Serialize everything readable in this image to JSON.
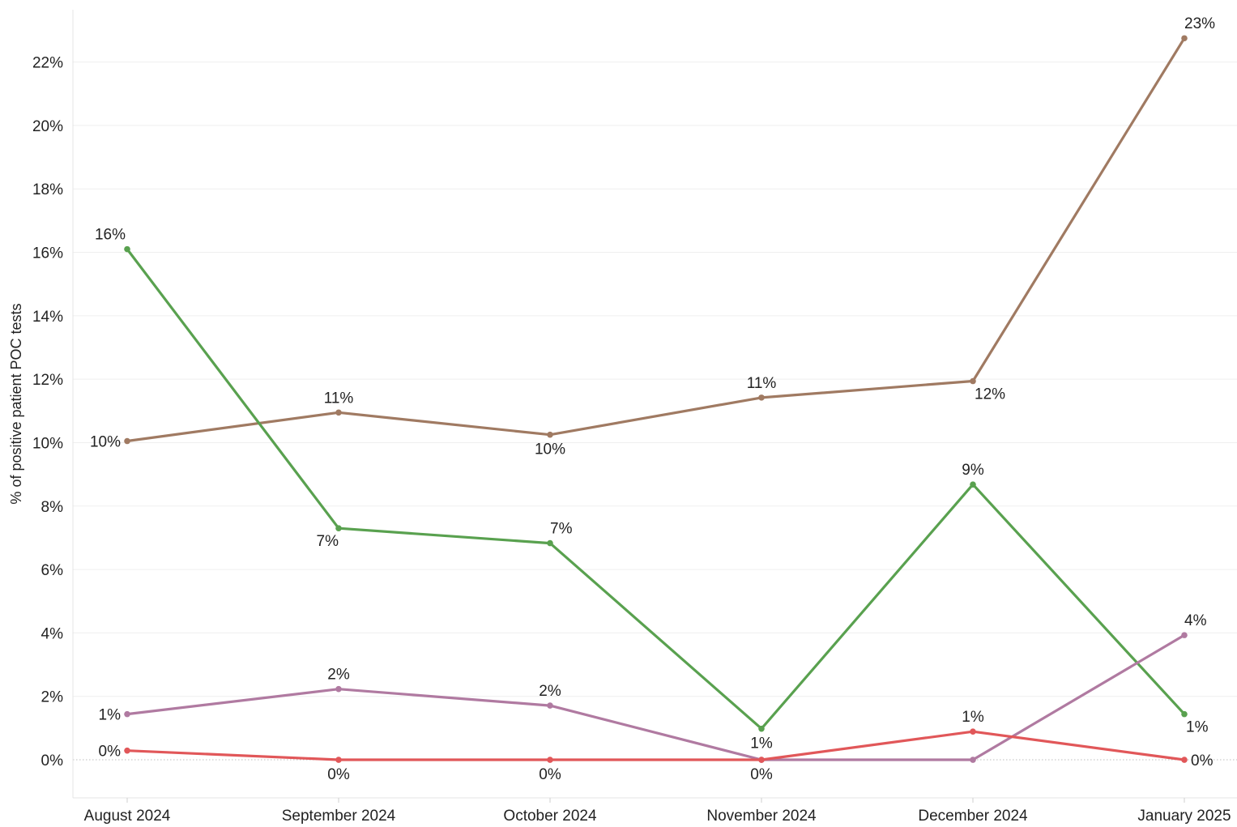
{
  "chart_data": {
    "type": "line",
    "title": "",
    "xlabel": "",
    "ylabel": "% of positive patient POC tests",
    "categories": [
      "August 2024",
      "September 2024",
      "October 2024",
      "November 2024",
      "December 2024",
      "January 2025"
    ],
    "ylim": [
      -0.012,
      0.2365
    ],
    "yticks": [
      0,
      0.02,
      0.04,
      0.06,
      0.08,
      0.1,
      0.12,
      0.14,
      0.16,
      0.18,
      0.2,
      0.22
    ],
    "ytick_labels": [
      "0%",
      "2%",
      "4%",
      "6%",
      "8%",
      "10%",
      "12%",
      "14%",
      "16%",
      "18%",
      "20%",
      "22%"
    ],
    "grid": true,
    "legend": "none",
    "series": [
      {
        "color": "#a07a62",
        "values": [
          0.1005,
          0.1095,
          0.1025,
          0.1142,
          0.1194,
          0.2275
        ],
        "labels": [
          "10%",
          "11%",
          "10%",
          "11%",
          "12%",
          "23%"
        ],
        "label_pos": [
          "left",
          "above",
          "below",
          "above",
          "below-right",
          "above-right"
        ]
      },
      {
        "color": "#59a14f",
        "values": [
          0.161,
          0.073,
          0.0683,
          0.0098,
          0.0868,
          0.0144
        ],
        "labels": [
          "16%",
          "7%",
          "7%",
          "1%",
          "9%",
          "1%"
        ],
        "label_pos": [
          "above-left",
          "below-left",
          "above-right",
          "below",
          "above",
          "below-right"
        ]
      },
      {
        "color": "#b07aa1",
        "values": [
          0.0144,
          0.0223,
          0.0171,
          0.0,
          0.0,
          0.0393
        ],
        "labels": [
          "1%",
          "2%",
          "2%",
          "",
          "",
          "4%"
        ],
        "label_pos": [
          "left",
          "above",
          "above",
          "none",
          "none",
          "above-right"
        ]
      },
      {
        "color": "#e15759",
        "values": [
          0.0029,
          0.0,
          0.0,
          0.0,
          0.0089,
          0.0
        ],
        "labels": [
          "0%",
          "0%",
          "0%",
          "0%",
          "1%",
          "0%"
        ],
        "label_pos": [
          "left",
          "below",
          "below",
          "below",
          "above",
          "right"
        ]
      }
    ]
  }
}
